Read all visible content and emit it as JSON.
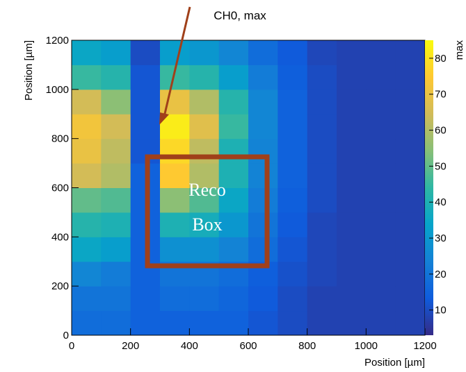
{
  "chart_data": {
    "type": "heatmap",
    "title": "CH0, max",
    "xlabel": "Position [µm]",
    "ylabel": "Position [µm]",
    "zlabel": "max",
    "box_label": [
      "Reco",
      "Box"
    ],
    "xbins": [
      0,
      100,
      200,
      300,
      400,
      500,
      600,
      700,
      800,
      900,
      1000,
      1100,
      1200
    ],
    "ybins": [
      0,
      100,
      200,
      300,
      400,
      500,
      600,
      700,
      800,
      900,
      1000,
      1100,
      1200
    ],
    "z": [
      [
        18,
        18,
        15,
        15,
        15,
        15,
        12,
        10,
        8,
        8,
        8,
        8
      ],
      [
        20,
        20,
        15,
        18,
        18,
        16,
        13,
        10,
        8,
        8,
        8,
        8
      ],
      [
        25,
        22,
        15,
        20,
        20,
        18,
        14,
        11,
        9,
        8,
        8,
        8
      ],
      [
        35,
        32,
        15,
        28,
        28,
        24,
        18,
        12,
        9,
        8,
        8,
        8
      ],
      [
        42,
        40,
        15,
        40,
        38,
        30,
        20,
        13,
        9,
        8,
        8,
        8
      ],
      [
        50,
        48,
        15,
        55,
        48,
        35,
        22,
        14,
        10,
        8,
        8,
        8
      ],
      [
        65,
        60,
        15,
        75,
        60,
        40,
        24,
        15,
        10,
        8,
        8,
        8
      ],
      [
        70,
        62,
        12,
        78,
        62,
        40,
        24,
        15,
        10,
        8,
        8,
        8
      ],
      [
        72,
        65,
        12,
        82,
        68,
        45,
        25,
        15,
        10,
        8,
        8,
        8
      ],
      [
        65,
        55,
        12,
        70,
        60,
        42,
        25,
        15,
        10,
        8,
        8,
        8
      ],
      [
        45,
        42,
        12,
        45,
        42,
        32,
        22,
        14,
        10,
        8,
        8,
        8
      ],
      [
        35,
        32,
        10,
        32,
        30,
        25,
        18,
        13,
        9,
        8,
        8,
        8
      ]
    ],
    "xlim": [
      0,
      1200
    ],
    "ylim": [
      0,
      1200
    ],
    "zlim": [
      3,
      85
    ],
    "xticks": [
      0,
      200,
      400,
      600,
      800,
      1000,
      1200
    ],
    "yticks": [
      0,
      200,
      400,
      600,
      800,
      1000,
      1200
    ],
    "zticks": [
      10,
      20,
      30,
      40,
      50,
      60,
      70,
      80
    ],
    "colormap": [
      "#352a87",
      "#0f5cdd",
      "#1481d6",
      "#06a4ca",
      "#2eb7a4",
      "#87bf77",
      "#d1bb59",
      "#fec832",
      "#f9fb0e"
    ]
  }
}
